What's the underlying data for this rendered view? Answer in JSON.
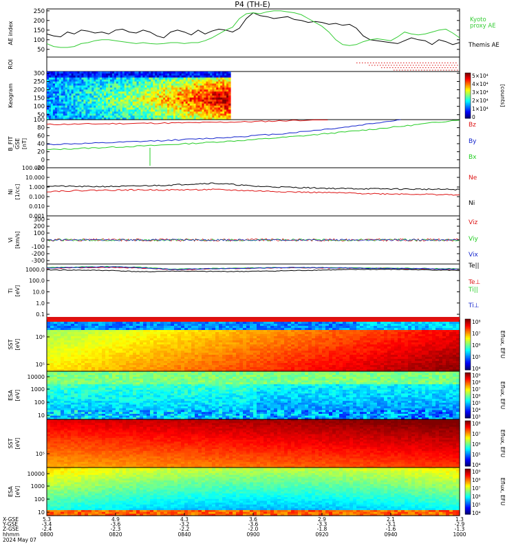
{
  "title": "P4 (TH-E)",
  "date_label": "2024 May 07",
  "colors": {
    "black": "#000000",
    "green": "#22cc22",
    "red": "#dd1111",
    "blue": "#1122cc",
    "kyoto": "#33cc33"
  },
  "chart_data": [
    {
      "type": "line",
      "panel": "ae",
      "ylabel": "AE index",
      "yticks": [
        "50",
        "100",
        "150",
        "200",
        "250"
      ],
      "ylim": [
        10,
        260
      ],
      "x": [
        0,
        10,
        20,
        30,
        40,
        50,
        60,
        70,
        80,
        90,
        100,
        110,
        120,
        130,
        140,
        150,
        160,
        170,
        180,
        190,
        200,
        210,
        220,
        230,
        240,
        250,
        260,
        270,
        280,
        290,
        300,
        310,
        320,
        330,
        340,
        350,
        360,
        370,
        380,
        390,
        400,
        410,
        420,
        430,
        440,
        450,
        460,
        470,
        480,
        490,
        500,
        510,
        520,
        530,
        540,
        550,
        560,
        570,
        580,
        590,
        600
      ],
      "series": [
        {
          "name": "Themis AE",
          "values": [
            130,
            120,
            115,
            140,
            130,
            150,
            145,
            135,
            140,
            130,
            150,
            155,
            140,
            135,
            150,
            140,
            120,
            110,
            140,
            150,
            140,
            125,
            150,
            130,
            145,
            155,
            150,
            140,
            160,
            210,
            240,
            225,
            220,
            210,
            215,
            220,
            205,
            200,
            190,
            195,
            190,
            180,
            185,
            175,
            180,
            160,
            120,
            100,
            95,
            90,
            85,
            80,
            95,
            110,
            100,
            95,
            75,
            100,
            90,
            75,
            85
          ]
        },
        {
          "name": "Kyoto proxy AE",
          "values": [
            80,
            65,
            60,
            60,
            65,
            80,
            85,
            95,
            100,
            100,
            95,
            90,
            85,
            80,
            85,
            80,
            78,
            80,
            85,
            85,
            80,
            85,
            85,
            95,
            110,
            130,
            150,
            165,
            210,
            235,
            240,
            235,
            245,
            250,
            250,
            245,
            240,
            230,
            210,
            190,
            170,
            140,
            100,
            75,
            70,
            75,
            90,
            100,
            105,
            100,
            95,
            115,
            140,
            130,
            125,
            130,
            140,
            150,
            155,
            135,
            110
          ]
        }
      ],
      "labels": [
        "Kyoto",
        "proxy AE",
        "Themis AE"
      ]
    },
    {
      "type": "scatter",
      "panel": "roi",
      "ylabel": "ROI",
      "start_fraction": 0.75,
      "levels": 4
    },
    {
      "type": "heatmap",
      "panel": "keogram",
      "ylabel": "Keogram",
      "yticks": [
        "50",
        "100",
        "150",
        "200",
        "250",
        "300"
      ],
      "ylim": [
        20,
        310
      ],
      "data_end_fraction": 0.445,
      "colorbar_ticks": [
        "5×10⁴",
        "4×10⁴",
        "3×10⁴",
        "2×10⁴",
        "1×10⁴",
        "0"
      ],
      "colorbar_label": "[counts]"
    },
    {
      "type": "line",
      "panel": "bfield",
      "ylabel": "B_FIT GSE [nT]",
      "yticks": [
        "-20",
        "0",
        "20",
        "40",
        "60",
        "80",
        "100"
      ],
      "ylim": [
        -20,
        100
      ],
      "series": [
        {
          "name": "Bz",
          "values": [
            88,
            90,
            92,
            95,
            100,
            105,
            110
          ]
        },
        {
          "name": "By",
          "values": [
            38,
            42,
            48,
            55,
            65,
            80,
            100,
            120
          ]
        },
        {
          "name": "Bx",
          "values": [
            25,
            30,
            35,
            42,
            50,
            60,
            72,
            85,
            100
          ]
        }
      ],
      "legend": [
        "Bz",
        "By",
        "Bx"
      ],
      "spike": {
        "x_fraction": 0.25,
        "value": -15
      }
    },
    {
      "type": "line",
      "panel": "density",
      "ylabel": "Ni, Ne [1/cc]",
      "scale": "log",
      "yticks": [
        "0.001",
        "0.010",
        "0.100",
        "1.000",
        "10.000",
        "100.000"
      ],
      "ylim": [
        0.001,
        100
      ],
      "series": [
        {
          "name": "Ni",
          "values": [
            1.3,
            1.1,
            1.2,
            1.6,
            2.5,
            1.2,
            0.9,
            0.7,
            0.65,
            0.6,
            0.55
          ]
        },
        {
          "name": "Ne",
          "values": [
            0.35,
            0.45,
            0.5,
            0.5,
            0.55,
            0.4,
            0.3,
            0.25,
            0.2,
            0.18,
            0.15
          ]
        }
      ],
      "legend": [
        "Ne",
        "Ni"
      ]
    },
    {
      "type": "line",
      "panel": "velocity",
      "ylabel": "Vi [km/s]",
      "yticks": [
        "-300",
        "-200",
        "-100",
        "0",
        "100",
        "200",
        "300"
      ],
      "ylim": [
        -350,
        350
      ],
      "series": [
        {
          "name": "Viz",
          "amplitude": 20
        },
        {
          "name": "Viy",
          "amplitude": 15
        },
        {
          "name": "Vix",
          "amplitude": 12
        }
      ],
      "legend": [
        "Viz",
        "Viy",
        "Vix"
      ]
    },
    {
      "type": "line",
      "panel": "temperature",
      "ylabel": "Ti [eV]",
      "scale": "log",
      "yticks": [
        "0.1",
        "1.0",
        "10.0",
        "100.0",
        "1000.0"
      ],
      "ylim": [
        0.05,
        3000
      ],
      "series": [
        {
          "name": "Te||",
          "values": [
            900,
            850,
            800,
            600,
            700,
            650,
            650,
            700,
            800,
            900,
            1000,
            1000,
            900,
            800
          ]
        },
        {
          "name": "Te⊥",
          "values": [
            1200,
            1400,
            1500,
            1300,
            900,
            1100,
            1200,
            1300,
            1400,
            1300,
            1300,
            1200,
            1100,
            1000
          ]
        },
        {
          "name": "Ti||",
          "values": [
            1400,
            1600,
            1800,
            1500,
            1000,
            1200,
            1300,
            1400,
            1500,
            1400,
            1300,
            1300,
            1200,
            1100
          ]
        },
        {
          "name": "Ti⊥",
          "values": [
            1300,
            1500,
            1700,
            1400,
            950,
            1150,
            1250,
            1350,
            1450,
            1350,
            1250,
            1200,
            1150,
            1000
          ]
        }
      ],
      "legend": [
        "Te||",
        "Te⊥",
        "Ti||",
        "Ti⊥"
      ]
    },
    {
      "type": "heatmap",
      "panel": "sst_e",
      "ylabel": "SST [eV]",
      "yticks": [
        "10⁶",
        "10⁵"
      ],
      "colorbar_ticks": [
        "10⁸",
        "10⁷",
        "10⁶",
        "10⁵",
        "10⁴"
      ],
      "colorbar_label": "Eflux, EFU"
    },
    {
      "type": "heatmap",
      "panel": "esa_e",
      "ylabel": "ESA [eV]",
      "yticks": [
        "10000",
        "1000",
        "100",
        "10"
      ],
      "colorbar_ticks": [
        "10⁹",
        "10⁸",
        "10⁷",
        "10⁶",
        "10⁵",
        "10⁴",
        "10³"
      ],
      "colorbar_label": "Eflux, EFU"
    },
    {
      "type": "heatmap",
      "panel": "sst_i",
      "ylabel": "SST [eV]",
      "yticks": [
        "10⁵"
      ],
      "colorbar_ticks": [
        "10⁸",
        "10⁷",
        "10⁶",
        "10⁵",
        "10⁴"
      ],
      "colorbar_label": "Eflux, EFU"
    },
    {
      "type": "heatmap",
      "panel": "esa_i",
      "ylabel": "ESA [eV]",
      "yticks": [
        "10000",
        "1000",
        "100",
        "10"
      ],
      "colorbar_ticks": [
        "10⁹",
        "10⁸",
        "10⁷",
        "10⁶",
        "10⁵",
        "10⁴"
      ],
      "colorbar_label": "Eflux, EFU"
    }
  ],
  "x_axis": {
    "row_labels": [
      "X-GSE",
      "Y-GSE",
      "Z-GSE",
      "hhmm",
      "2024 May 07"
    ],
    "ticks": [
      {
        "values": [
          "5.3",
          "-3.4",
          "-2.4",
          "0800"
        ]
      },
      {
        "values": [
          "4.9",
          "-3.6",
          "-2.3",
          "0820"
        ]
      },
      {
        "values": [
          "4.3",
          "-3.2",
          "-2.2",
          "0840"
        ]
      },
      {
        "values": [
          "3.6",
          "-3.6",
          "-2.0",
          "0900"
        ]
      },
      {
        "values": [
          "2.9",
          "-3.3",
          "-1.8",
          "0920"
        ]
      },
      {
        "values": [
          "2.1",
          "-3.1",
          "-1.6",
          "0940"
        ]
      },
      {
        "values": [
          "1.3",
          "-2.9",
          "-1.3",
          "1000"
        ]
      }
    ]
  }
}
